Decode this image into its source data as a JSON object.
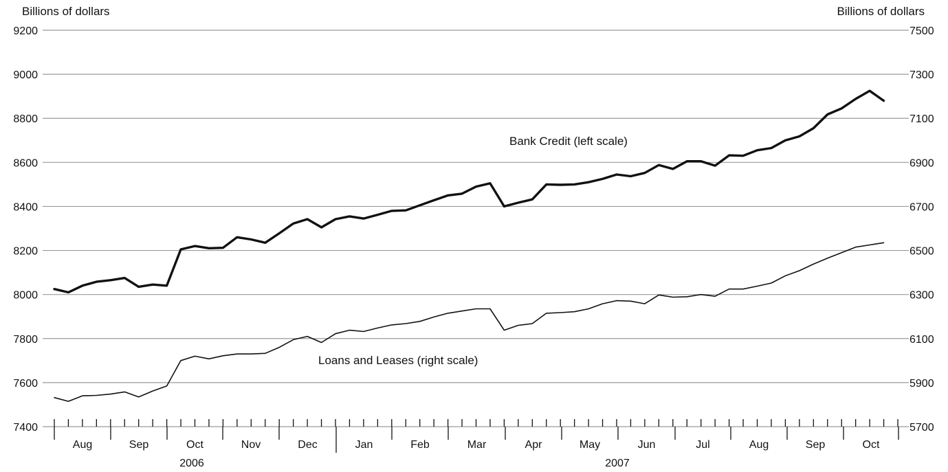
{
  "chart_data": {
    "type": "line",
    "left_axis_title": "Billions of dollars",
    "right_axis_title": "Billions of dollars",
    "left_ticks": [
      9200,
      9000,
      8800,
      8600,
      8400,
      8200,
      8000,
      7800,
      7600,
      7400
    ],
    "right_ticks": [
      7500,
      7300,
      7100,
      6900,
      6700,
      6500,
      6300,
      6100,
      5900,
      5700
    ],
    "left_ylim": [
      7400,
      9200
    ],
    "right_ylim": [
      5700,
      7500
    ],
    "grid": true,
    "months": [
      "Aug",
      "Sep",
      "Oct",
      "Nov",
      "Dec",
      "Jan",
      "Feb",
      "Mar",
      "Apr",
      "May",
      "Jun",
      "Jul",
      "Aug",
      "Sep",
      "Oct"
    ],
    "years": [
      "2006",
      "2007"
    ],
    "series": [
      {
        "name": "Bank Credit (left scale)",
        "axis": "left",
        "frequency": "weekly",
        "values": [
          8025,
          8010,
          8040,
          8058,
          8065,
          8075,
          8035,
          8045,
          8040,
          8205,
          8220,
          8210,
          8212,
          8260,
          8250,
          8235,
          8278,
          8322,
          8342,
          8305,
          8342,
          8355,
          8345,
          8362,
          8380,
          8382,
          8405,
          8428,
          8450,
          8458,
          8490,
          8505,
          8400,
          8417,
          8432,
          8500,
          8498,
          8500,
          8510,
          8525,
          8545,
          8537,
          8552,
          8588,
          8570,
          8605,
          8605,
          8585,
          8632,
          8630,
          8655,
          8665,
          8700,
          8718,
          8755,
          8818,
          8845,
          8888,
          8925,
          8880
        ]
      },
      {
        "name": "Loans and Leases (right scale)",
        "axis": "right",
        "frequency": "weekly",
        "values": [
          5832,
          5815,
          5840,
          5842,
          5848,
          5858,
          5835,
          5862,
          5885,
          6000,
          6020,
          6008,
          6022,
          6030,
          6030,
          6033,
          6060,
          6095,
          6110,
          6082,
          6122,
          6138,
          6132,
          6148,
          6162,
          6168,
          6178,
          6198,
          6215,
          6225,
          6235,
          6235,
          6138,
          6160,
          6168,
          6215,
          6218,
          6222,
          6235,
          6258,
          6272,
          6270,
          6258,
          6298,
          6288,
          6290,
          6300,
          6292,
          6325,
          6325,
          6338,
          6352,
          6385,
          6408,
          6438,
          6465,
          6490,
          6515,
          6525,
          6535
        ]
      }
    ],
    "annotations": {
      "bank_credit": "Bank Credit (left scale)",
      "loans_leases": "Loans and Leases (right scale)"
    },
    "colors": {
      "line": "#111111",
      "grid": "#9a9a9a",
      "background": "#ffffff"
    }
  }
}
